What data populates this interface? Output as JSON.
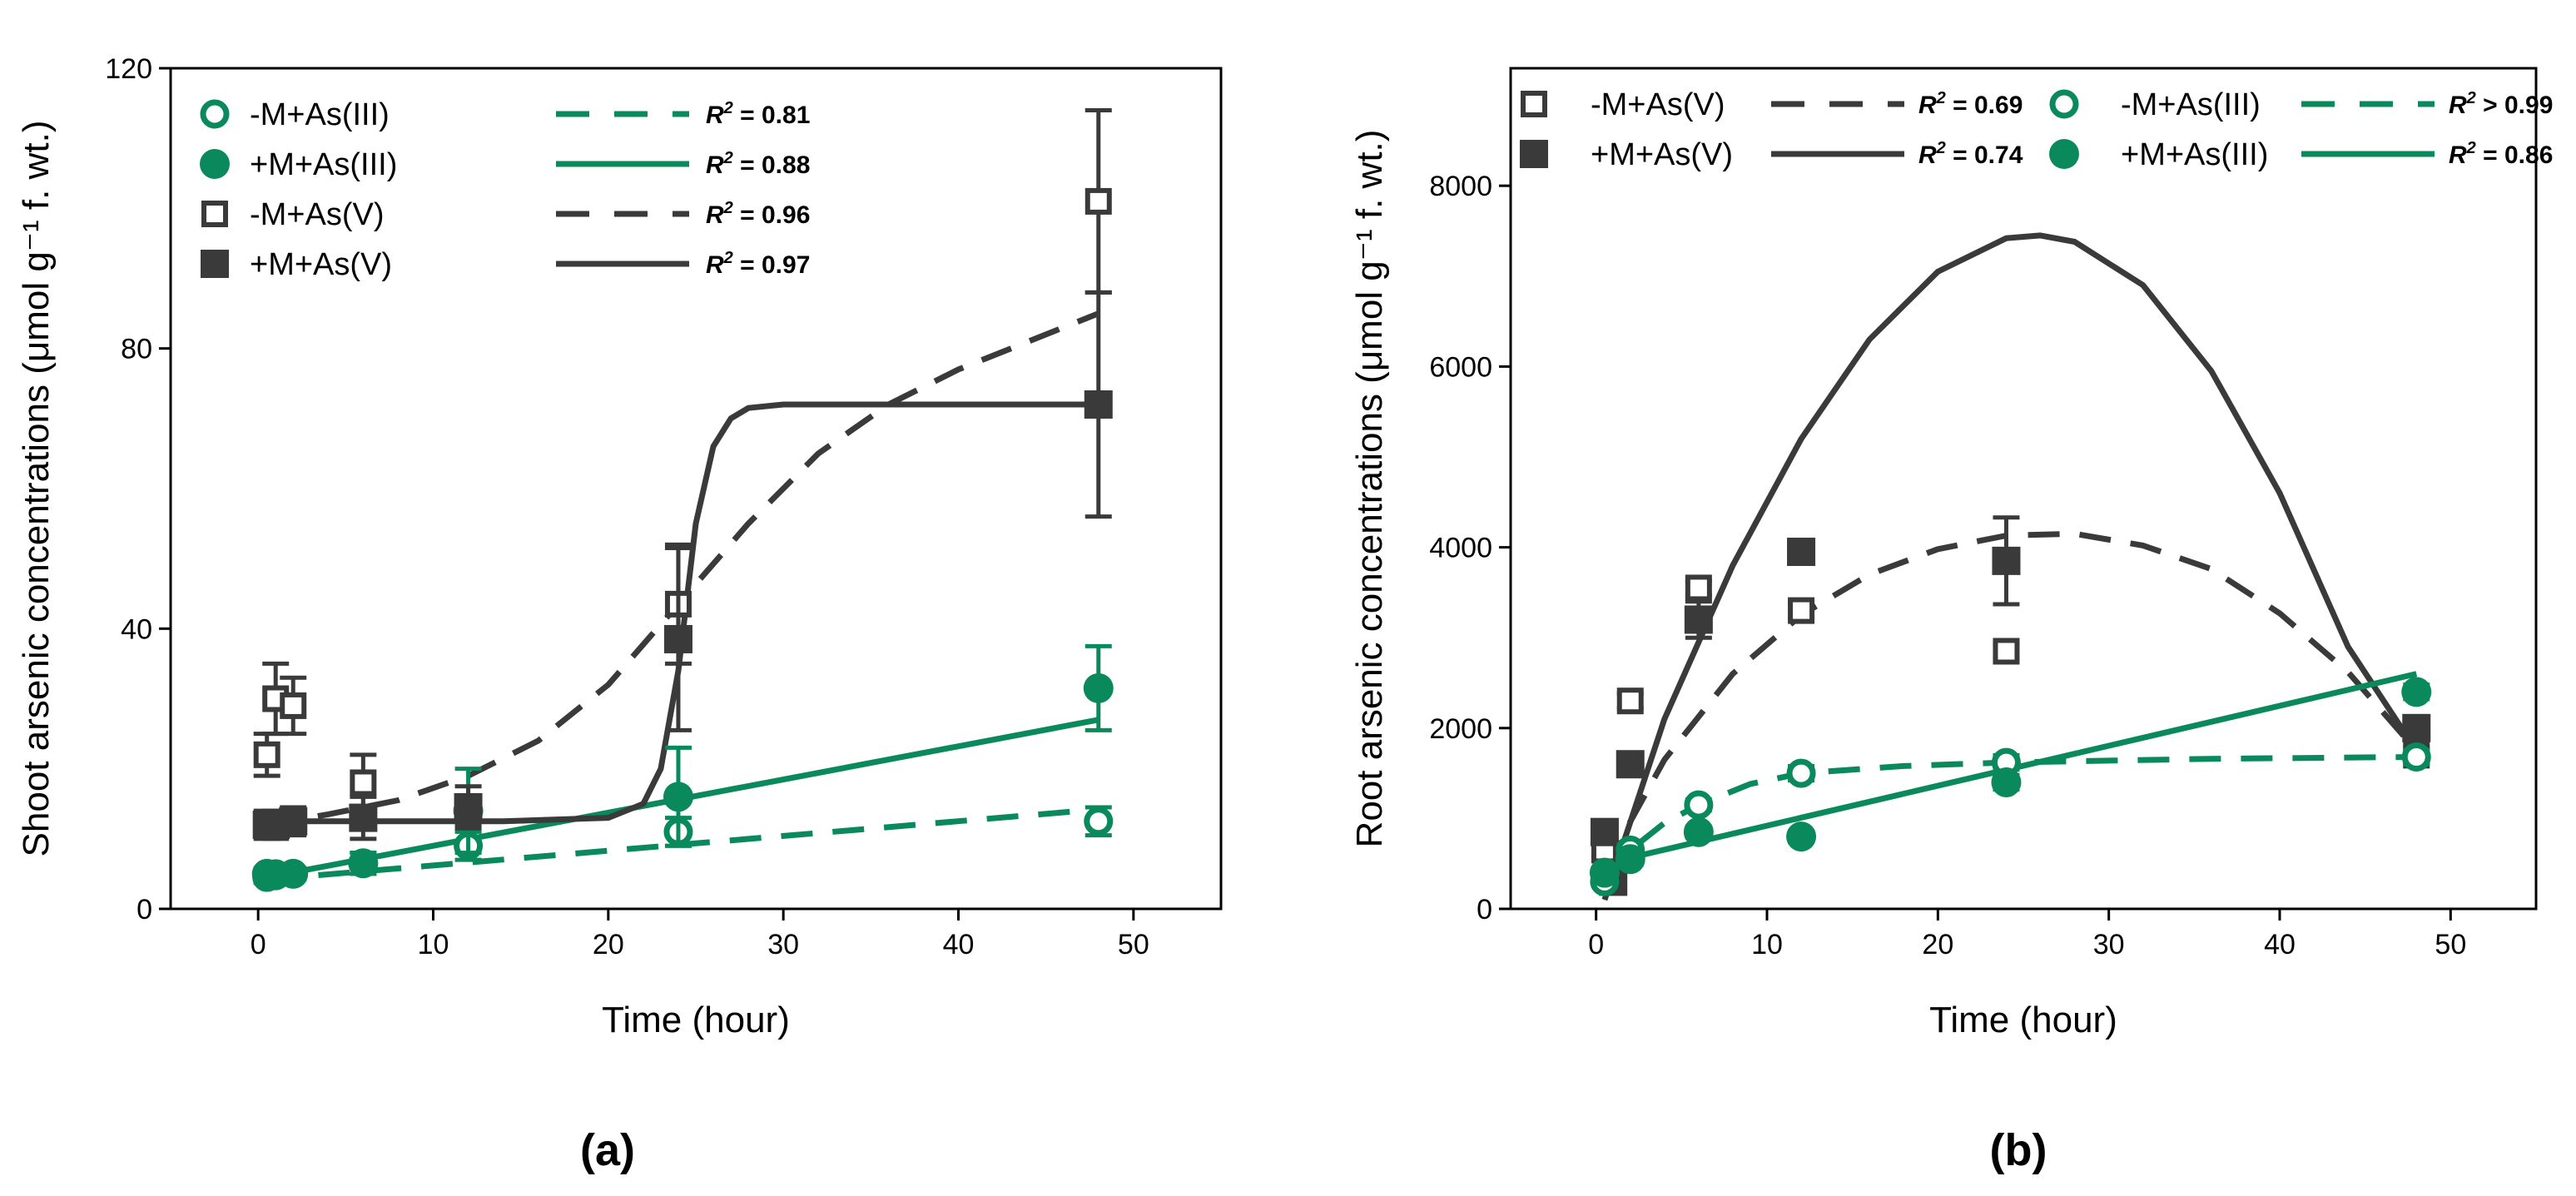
{
  "colors": {
    "green": "#0a8a5c",
    "dark": "#3a3a3a",
    "axis": "#000000"
  },
  "chart_data": [
    {
      "type": "scatter",
      "panel": "a",
      "panel_label": "(a)",
      "xlabel": "Time (hour)",
      "ylabel": "Shoot arsenic concentrations (μmol g⁻¹ f. wt.)",
      "xlim": [
        -5,
        55
      ],
      "ylim": [
        0,
        120
      ],
      "xticks": [
        0,
        10,
        20,
        30,
        40,
        50
      ],
      "yticks": [
        0,
        40,
        80,
        120
      ],
      "series": [
        {
          "name": "-M+As(III)",
          "color": "green",
          "marker": "circle-open",
          "points": [
            {
              "x": 0.5,
              "y": 4.5,
              "err": 0.8
            },
            {
              "x": 1,
              "y": 5,
              "err": 0.8
            },
            {
              "x": 2,
              "y": 5,
              "err": 0.8
            },
            {
              "x": 6,
              "y": 6.5,
              "err": 1.5
            },
            {
              "x": 12,
              "y": 9,
              "err": 2
            },
            {
              "x": 24,
              "y": 11,
              "err": 2
            },
            {
              "x": 48,
              "y": 12.5,
              "err": 2
            }
          ],
          "fit": {
            "style": "dashed",
            "r2": "= 0.81",
            "points": [
              [
                0.5,
                4.2
              ],
              [
                48,
                14.2
              ]
            ]
          }
        },
        {
          "name": "+M+As(III)",
          "color": "green",
          "marker": "circle-filled",
          "points": [
            {
              "x": 0.5,
              "y": 5,
              "err": 0.8
            },
            {
              "x": 1,
              "y": 4.8,
              "err": 0.8
            },
            {
              "x": 2,
              "y": 5,
              "err": 0.8
            },
            {
              "x": 6,
              "y": 6.5,
              "err": 1.5
            },
            {
              "x": 12,
              "y": 14,
              "err": 6
            },
            {
              "x": 24,
              "y": 16,
              "err": 7
            },
            {
              "x": 48,
              "y": 31.5,
              "err": 6
            }
          ],
          "fit": {
            "style": "solid",
            "r2": "= 0.88",
            "points": [
              [
                0.5,
                4.5
              ],
              [
                48,
                27
              ]
            ]
          }
        },
        {
          "name": "-M+As(V)",
          "color": "dark",
          "marker": "square-open",
          "points": [
            {
              "x": 0.5,
              "y": 22,
              "err": 3
            },
            {
              "x": 1,
              "y": 30,
              "err": 5
            },
            {
              "x": 2,
              "y": 29,
              "err": 4
            },
            {
              "x": 6,
              "y": 18,
              "err": 4
            },
            {
              "x": 12,
              "y": 14,
              "err": 2
            },
            {
              "x": 24,
              "y": 43.5,
              "err": 8.5
            },
            {
              "x": 48,
              "y": 101,
              "err": 13
            }
          ],
          "fit": {
            "style": "dashed",
            "r2": "= 0.96",
            "points": [
              [
                0.5,
                12
              ],
              [
                4,
                13.5
              ],
              [
                8,
                15.5
              ],
              [
                12,
                19
              ],
              [
                16,
                24
              ],
              [
                20,
                32
              ],
              [
                24,
                43.5
              ],
              [
                28,
                55
              ],
              [
                32,
                65
              ],
              [
                36,
                72
              ],
              [
                40,
                77
              ],
              [
                44,
                81
              ],
              [
                48,
                85
              ]
            ]
          }
        },
        {
          "name": "+M+As(V)",
          "color": "dark",
          "marker": "square-filled",
          "points": [
            {
              "x": 0.5,
              "y": 12,
              "err": 2
            },
            {
              "x": 1,
              "y": 12,
              "err": 2
            },
            {
              "x": 2,
              "y": 12.5,
              "err": 2
            },
            {
              "x": 6,
              "y": 13,
              "err": 3
            },
            {
              "x": 12,
              "y": 14.5,
              "err": 3
            },
            {
              "x": 24,
              "y": 38.5,
              "err": 13
            },
            {
              "x": 48,
              "y": 72,
              "err": 16
            }
          ],
          "fit": {
            "style": "solid",
            "r2": "= 0.97",
            "points": [
              [
                0.5,
                12.5
              ],
              [
                14,
                12.5
              ],
              [
                20,
                13
              ],
              [
                22,
                15
              ],
              [
                23,
                20
              ],
              [
                24,
                34
              ],
              [
                25,
                55
              ],
              [
                26,
                66
              ],
              [
                27,
                70
              ],
              [
                28,
                71.5
              ],
              [
                30,
                72
              ],
              [
                48,
                72
              ]
            ]
          }
        }
      ]
    },
    {
      "type": "scatter",
      "panel": "b",
      "panel_label": "(b)",
      "xlabel": "Time (hour)",
      "ylabel": "Root arsenic concentrations (μmol g⁻¹ f. wt.)",
      "xlim": [
        -5,
        55
      ],
      "ylim": [
        0,
        9300
      ],
      "xticks": [
        0,
        10,
        20,
        30,
        40,
        50
      ],
      "yticks": [
        0,
        2000,
        4000,
        6000,
        8000
      ],
      "series": [
        {
          "name": "-M+As(V)",
          "color": "dark",
          "marker": "square-open",
          "points": [
            {
              "x": 0.5,
              "y": 650,
              "err": 60
            },
            {
              "x": 2,
              "y": 2300,
              "err": 80
            },
            {
              "x": 6,
              "y": 3550,
              "err": 80
            },
            {
              "x": 12,
              "y": 3300,
              "err": 80
            },
            {
              "x": 24,
              "y": 2850,
              "err": 80
            },
            {
              "x": 48,
              "y": 1700,
              "err": 80
            }
          ],
          "fit": {
            "style": "dashed",
            "r2": "= 0.69",
            "points": [
              [
                0.5,
                450
              ],
              [
                4,
                1650
              ],
              [
                8,
                2600
              ],
              [
                12,
                3250
              ],
              [
                16,
                3700
              ],
              [
                20,
                3980
              ],
              [
                24,
                4130
              ],
              [
                28,
                4150
              ],
              [
                32,
                4020
              ],
              [
                36,
                3760
              ],
              [
                40,
                3270
              ],
              [
                44,
                2620
              ],
              [
                48,
                1750
              ]
            ]
          }
        },
        {
          "name": "+M+As(V)",
          "color": "dark",
          "marker": "square-filled",
          "points": [
            {
              "x": 0.5,
              "y": 850,
              "err": 80
            },
            {
              "x": 1,
              "y": 300,
              "err": 60
            },
            {
              "x": 2,
              "y": 1600,
              "err": 80
            },
            {
              "x": 6,
              "y": 3200,
              "err": 200
            },
            {
              "x": 12,
              "y": 3950,
              "err": 80
            },
            {
              "x": 24,
              "y": 3850,
              "err": 480
            },
            {
              "x": 48,
              "y": 2000,
              "err": 120
            }
          ],
          "fit": {
            "style": "solid",
            "r2": "= 0.74",
            "points": [
              [
                0.5,
                100
              ],
              [
                4,
                2100
              ],
              [
                8,
                3800
              ],
              [
                12,
                5200
              ],
              [
                16,
                6300
              ],
              [
                20,
                7050
              ],
              [
                24,
                7420
              ],
              [
                26,
                7450
              ],
              [
                28,
                7380
              ],
              [
                32,
                6900
              ],
              [
                36,
                5950
              ],
              [
                40,
                4600
              ],
              [
                44,
                2900
              ],
              [
                48,
                1750
              ]
            ]
          }
        },
        {
          "name": "-M+As(III)",
          "color": "green",
          "marker": "circle-open",
          "points": [
            {
              "x": 0.5,
              "y": 300,
              "err": 50
            },
            {
              "x": 2,
              "y": 650,
              "err": 60
            },
            {
              "x": 6,
              "y": 1150,
              "err": 60
            },
            {
              "x": 12,
              "y": 1500,
              "err": 80
            },
            {
              "x": 24,
              "y": 1620,
              "err": 80
            },
            {
              "x": 48,
              "y": 1680,
              "err": 80
            }
          ],
          "fit": {
            "style": "dashed",
            "r2": "> 0.99",
            "points": [
              [
                0.5,
                300
              ],
              [
                2,
                650
              ],
              [
                4,
                950
              ],
              [
                6,
                1150
              ],
              [
                9,
                1380
              ],
              [
                12,
                1500
              ],
              [
                18,
                1580
              ],
              [
                24,
                1620
              ],
              [
                36,
                1660
              ],
              [
                48,
                1680
              ]
            ]
          }
        },
        {
          "name": "+M+As(III)",
          "color": "green",
          "marker": "circle-filled",
          "points": [
            {
              "x": 0.5,
              "y": 400,
              "err": 50
            },
            {
              "x": 2,
              "y": 550,
              "err": 60
            },
            {
              "x": 6,
              "y": 850,
              "err": 60
            },
            {
              "x": 12,
              "y": 800,
              "err": 60
            },
            {
              "x": 24,
              "y": 1400,
              "err": 80
            },
            {
              "x": 48,
              "y": 2400,
              "err": 80
            }
          ],
          "fit": {
            "style": "solid",
            "r2": "= 0.86",
            "points": [
              [
                0.5,
                500
              ],
              [
                48,
                2600
              ]
            ]
          }
        }
      ]
    }
  ]
}
